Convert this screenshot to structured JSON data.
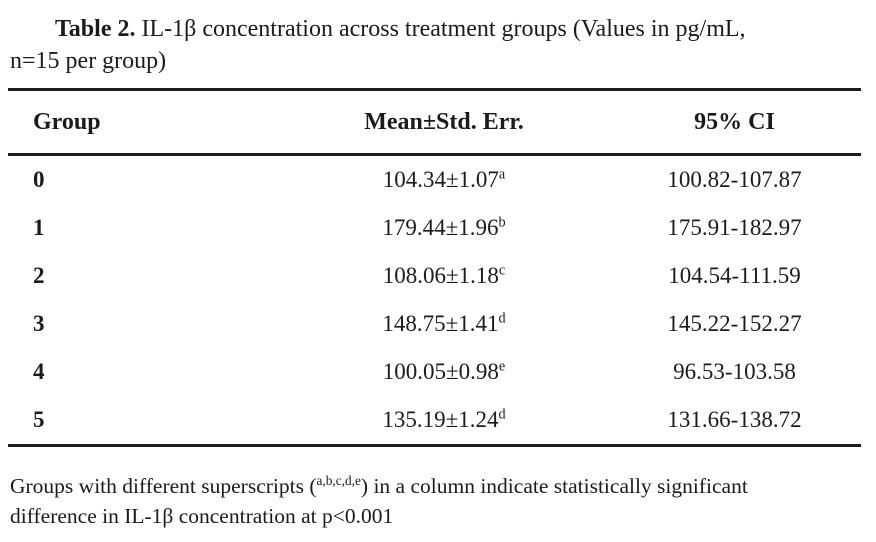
{
  "page": {
    "background": "#ffffff",
    "text_color": "#1b1b1b",
    "rule_color": "#1c1c1c"
  },
  "title": {
    "label_bold": "Table 2.",
    "line1_rest": " IL-1β concentration across treatment groups (Values in pg/mL,",
    "line2": "n=15 per group)"
  },
  "table": {
    "headers": [
      "Group",
      "Mean±Std. Err.",
      "95% CI"
    ],
    "rows": [
      {
        "group": "0",
        "mean": "104.34±1.07",
        "superscript": "a",
        "ci": "100.82-107.87"
      },
      {
        "group": "1",
        "mean": "179.44±1.96",
        "superscript": "b",
        "ci": "175.91-182.97"
      },
      {
        "group": "2",
        "mean": "108.06±1.18",
        "superscript": "c",
        "ci": "104.54-111.59"
      },
      {
        "group": "3",
        "mean": "148.75±1.41",
        "superscript": "d",
        "ci": "145.22-152.27"
      },
      {
        "group": "4",
        "mean": "100.05±0.98",
        "superscript": "e",
        "ci": "96.53-103.58"
      },
      {
        "group": "5",
        "mean": "135.19±1.24",
        "superscript": "d",
        "ci": "131.66-138.72"
      }
    ]
  },
  "footnote": {
    "line1_part1": "Groups with different superscripts (",
    "superscripts": "a,b,c,d,e",
    "line1_part2": ") in a column indicate statistically significant",
    "line2": "difference in IL-1β concentration at p<0.001"
  }
}
